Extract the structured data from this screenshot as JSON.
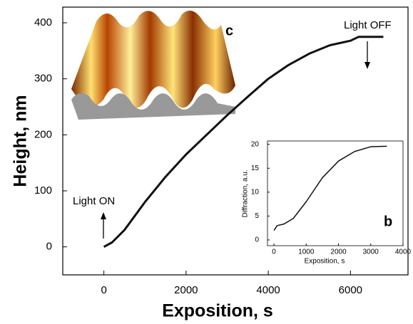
{
  "chart_data": [
    {
      "type": "line",
      "x_label": "Exposition, s",
      "y_label": "Height, nm",
      "x": [
        0,
        200,
        500,
        1000,
        1500,
        2000,
        2500,
        3000,
        3500,
        4000,
        4500,
        5000,
        5500,
        6000,
        6200,
        6800
      ],
      "series": [
        {
          "color": "#111111",
          "values": [
            0,
            8,
            30,
            80,
            125,
            165,
            200,
            235,
            268,
            300,
            325,
            345,
            360,
            368,
            375,
            375
          ]
        }
      ],
      "xlim": [
        -1000,
        7400
      ],
      "xticks": [
        0,
        2000,
        4000,
        6000
      ],
      "ylim": [
        -50,
        428
      ],
      "yticks": [
        0,
        100,
        200,
        300,
        400
      ],
      "grid": false,
      "annotations": [
        "Light ON",
        "Light OFF",
        "c"
      ]
    },
    {
      "type": "line",
      "x_label": "Exposition, s",
      "y_label": "Diffraction, a.u.",
      "x": [
        0,
        100,
        300,
        600,
        1000,
        1500,
        2000,
        2500,
        3000,
        3500
      ],
      "series": [
        {
          "color": "#111111",
          "values": [
            2,
            3,
            3.3,
            4.5,
            8,
            13,
            16.5,
            18.5,
            19.5,
            19.6
          ]
        }
      ],
      "xlim": [
        -200,
        4000
      ],
      "xticks": [
        0,
        1000,
        2000,
        3000,
        4000
      ],
      "ylim": [
        -1.2,
        20.7
      ],
      "yticks": [
        0,
        5,
        10,
        15,
        20
      ],
      "grid": false,
      "annotations": [
        "b"
      ]
    }
  ]
}
